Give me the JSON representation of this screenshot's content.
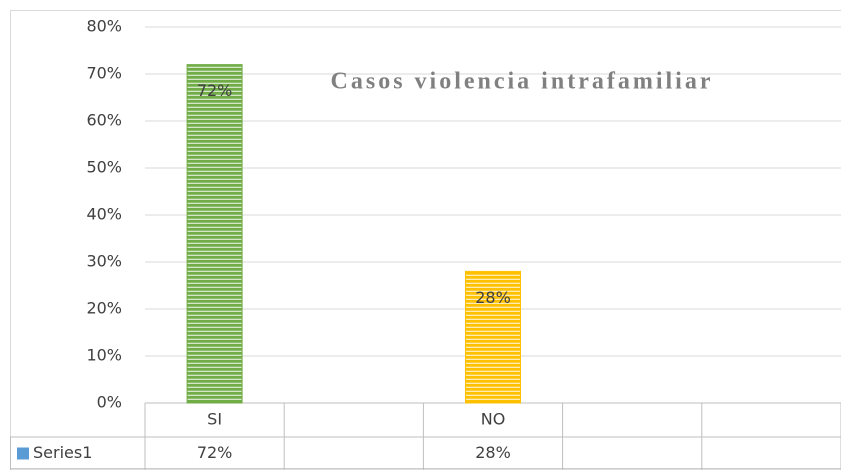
{
  "chart_data": {
    "type": "bar",
    "title": "Casos violencia intrafamiliar",
    "categories": [
      "SI",
      null,
      "NO",
      null,
      null
    ],
    "series": [
      {
        "name": "Series1",
        "color": "#5b9bd5",
        "values": [
          72,
          null,
          28,
          null,
          null
        ],
        "value_labels": [
          "72%",
          null,
          "28%",
          null,
          null
        ],
        "colors": [
          "#70ad47",
          null,
          "#ffc000",
          null,
          null
        ]
      }
    ],
    "ylim": [
      0,
      80
    ],
    "yticks": [
      {
        "value": 0,
        "label": "0%"
      },
      {
        "value": 10,
        "label": "10%"
      },
      {
        "value": 20,
        "label": "20%"
      },
      {
        "value": 30,
        "label": "30%"
      },
      {
        "value": 40,
        "label": "40%"
      },
      {
        "value": 50,
        "label": "50%"
      },
      {
        "value": 60,
        "label": "60%"
      },
      {
        "value": 70,
        "label": "70%"
      },
      {
        "value": 80,
        "label": "80%"
      }
    ],
    "grid": true
  }
}
